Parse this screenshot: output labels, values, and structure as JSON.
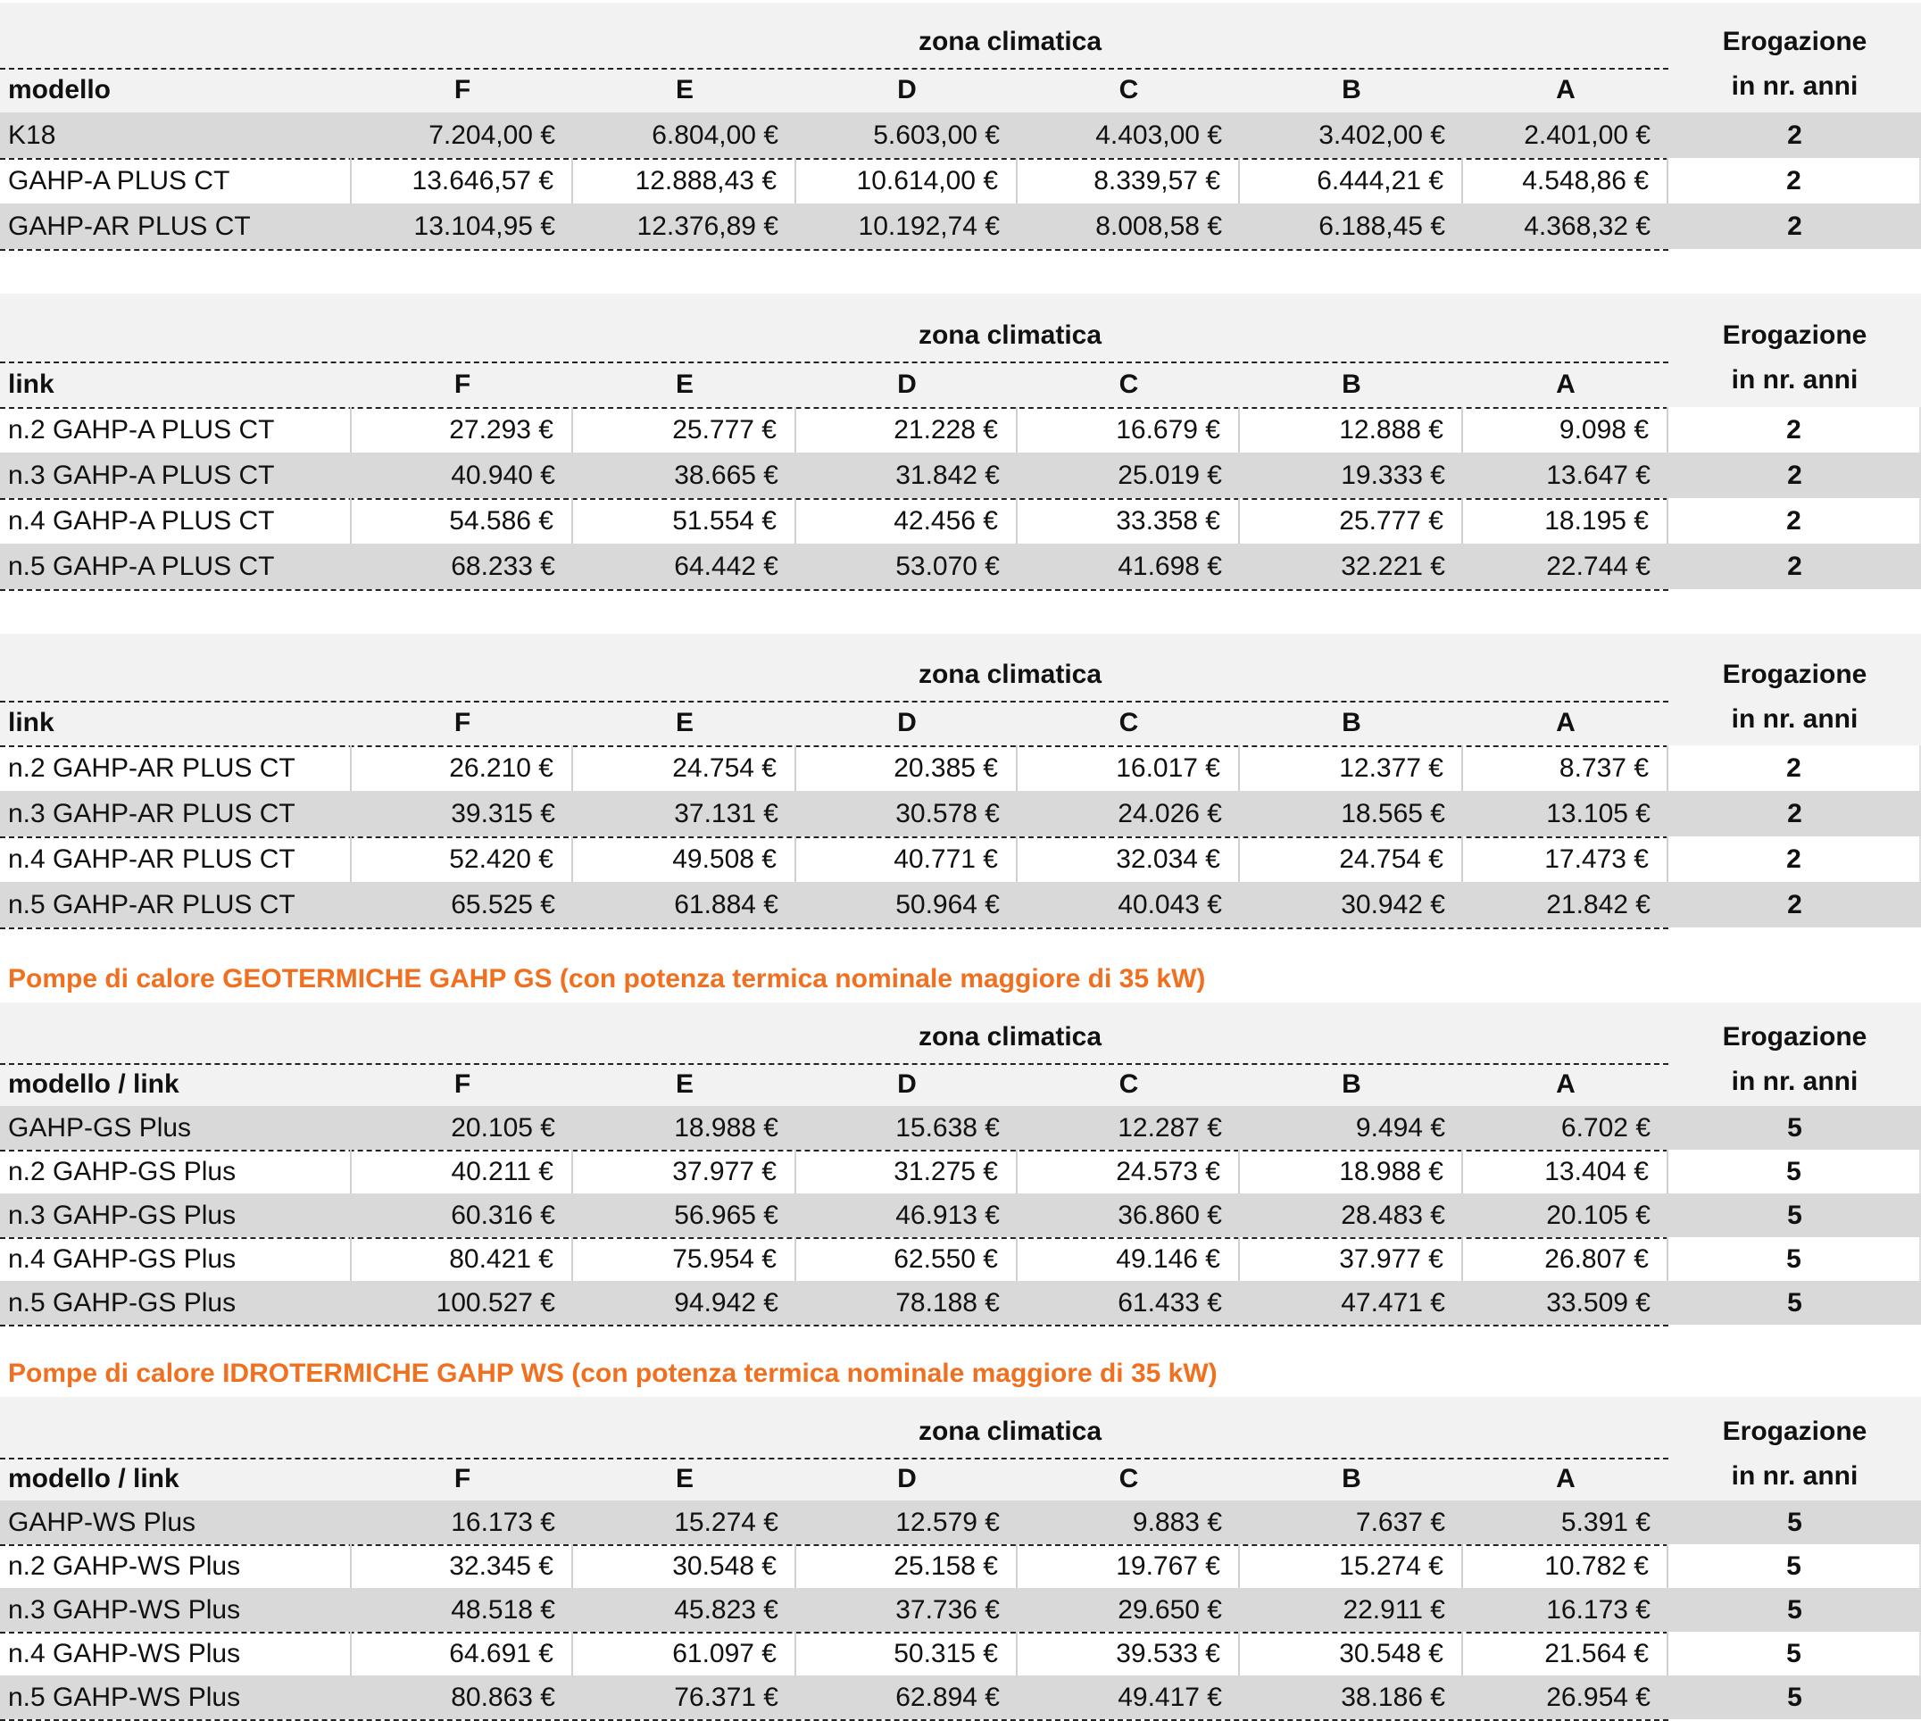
{
  "accent_color": "#f07020",
  "tables": [
    {
      "zona_label": "zona climatica",
      "erogazione_line1": "Erogazione",
      "erogazione_line2": "in nr. anni",
      "first_col_label": "modello",
      "columns": [
        "F",
        "E",
        "D",
        "C",
        "B",
        "A"
      ],
      "rows": [
        {
          "name": "K18",
          "values": [
            "7.204,00 €",
            "6.804,00 €",
            "5.603,00 €",
            "4.403,00 €",
            "3.402,00 €",
            "2.401,00 €"
          ],
          "anni": "2"
        },
        {
          "name": "GAHP-A PLUS CT",
          "values": [
            "13.646,57 €",
            "12.888,43 €",
            "10.614,00 €",
            "8.339,57 €",
            "6.444,21 €",
            "4.548,86 €"
          ],
          "anni": "2"
        },
        {
          "name": "GAHP-AR PLUS CT",
          "values": [
            "13.104,95 €",
            "12.376,89 €",
            "10.192,74 €",
            "8.008,58 €",
            "6.188,45 €",
            "4.368,32 €"
          ],
          "anni": "2"
        }
      ]
    },
    {
      "zona_label": "zona climatica",
      "erogazione_line1": "Erogazione",
      "erogazione_line2": "in nr. anni",
      "first_col_label": "link",
      "columns": [
        "F",
        "E",
        "D",
        "C",
        "B",
        "A"
      ],
      "rows": [
        {
          "name": "n.2 GAHP-A PLUS CT",
          "values": [
            "27.293 €",
            "25.777 €",
            "21.228 €",
            "16.679 €",
            "12.888 €",
            "9.098 €"
          ],
          "anni": "2"
        },
        {
          "name": "n.3 GAHP-A PLUS CT",
          "values": [
            "40.940 €",
            "38.665 €",
            "31.842 €",
            "25.019 €",
            "19.333 €",
            "13.647 €"
          ],
          "anni": "2"
        },
        {
          "name": "n.4 GAHP-A PLUS CT",
          "values": [
            "54.586 €",
            "51.554 €",
            "42.456 €",
            "33.358 €",
            "25.777 €",
            "18.195 €"
          ],
          "anni": "2"
        },
        {
          "name": "n.5 GAHP-A PLUS CT",
          "values": [
            "68.233 €",
            "64.442 €",
            "53.070 €",
            "41.698 €",
            "32.221 €",
            "22.744 €"
          ],
          "anni": "2"
        }
      ]
    },
    {
      "zona_label": "zona climatica",
      "erogazione_line1": "Erogazione",
      "erogazione_line2": "in nr. anni",
      "first_col_label": "link",
      "columns": [
        "F",
        "E",
        "D",
        "C",
        "B",
        "A"
      ],
      "rows": [
        {
          "name": "n.2 GAHP-AR PLUS CT",
          "values": [
            "26.210 €",
            "24.754 €",
            "20.385 €",
            "16.017 €",
            "12.377 €",
            "8.737 €"
          ],
          "anni": "2"
        },
        {
          "name": "n.3 GAHP-AR PLUS CT",
          "values": [
            "39.315 €",
            "37.131 €",
            "30.578 €",
            "24.026 €",
            "18.565 €",
            "13.105 €"
          ],
          "anni": "2"
        },
        {
          "name": "n.4 GAHP-AR PLUS CT",
          "values": [
            "52.420 €",
            "49.508 €",
            "40.771 €",
            "32.034 €",
            "24.754 €",
            "17.473 €"
          ],
          "anni": "2"
        },
        {
          "name": "n.5 GAHP-AR PLUS CT",
          "values": [
            "65.525 €",
            "61.884 €",
            "50.964 €",
            "40.043 €",
            "30.942 €",
            "21.842 €"
          ],
          "anni": "2"
        }
      ]
    },
    {
      "section_title": "Pompe di calore GEOTERMICHE GAHP GS (con potenza termica nominale maggiore di 35 kW)",
      "zona_label": "zona climatica",
      "erogazione_line1": "Erogazione",
      "erogazione_line2": "in nr. anni",
      "first_col_label": "modello / link",
      "columns": [
        "F",
        "E",
        "D",
        "C",
        "B",
        "A"
      ],
      "rows": [
        {
          "name": "GAHP-GS Plus",
          "values": [
            "20.105 €",
            "18.988 €",
            "15.638 €",
            "12.287 €",
            "9.494 €",
            "6.702 €"
          ],
          "anni": "5"
        },
        {
          "name": "n.2 GAHP-GS Plus",
          "values": [
            "40.211 €",
            "37.977 €",
            "31.275 €",
            "24.573 €",
            "18.988 €",
            "13.404 €"
          ],
          "anni": "5"
        },
        {
          "name": "n.3 GAHP-GS Plus",
          "values": [
            "60.316 €",
            "56.965 €",
            "46.913 €",
            "36.860 €",
            "28.483 €",
            "20.105 €"
          ],
          "anni": "5"
        },
        {
          "name": "n.4 GAHP-GS Plus",
          "values": [
            "80.421 €",
            "75.954 €",
            "62.550 €",
            "49.146 €",
            "37.977 €",
            "26.807 €"
          ],
          "anni": "5"
        },
        {
          "name": "n.5 GAHP-GS Plus",
          "values": [
            "100.527 €",
            "94.942 €",
            "78.188 €",
            "61.433 €",
            "47.471 €",
            "33.509 €"
          ],
          "anni": "5"
        }
      ]
    },
    {
      "section_title": "Pompe di calore IDROTERMICHE GAHP WS (con potenza termica nominale maggiore di 35 kW)",
      "zona_label": "zona climatica",
      "erogazione_line1": "Erogazione",
      "erogazione_line2": "in nr. anni",
      "first_col_label": "modello / link",
      "columns": [
        "F",
        "E",
        "D",
        "C",
        "B",
        "A"
      ],
      "rows": [
        {
          "name": "GAHP-WS Plus",
          "values": [
            "16.173 €",
            "15.274 €",
            "12.579 €",
            "9.883 €",
            "7.637 €",
            "5.391 €"
          ],
          "anni": "5"
        },
        {
          "name": "n.2 GAHP-WS Plus",
          "values": [
            "32.345 €",
            "30.548 €",
            "25.158 €",
            "19.767 €",
            "15.274 €",
            "10.782 €"
          ],
          "anni": "5"
        },
        {
          "name": "n.3 GAHP-WS Plus",
          "values": [
            "48.518 €",
            "45.823 €",
            "37.736 €",
            "29.650 €",
            "22.911 €",
            "16.173 €"
          ],
          "anni": "5"
        },
        {
          "name": "n.4 GAHP-WS Plus",
          "values": [
            "64.691 €",
            "61.097 €",
            "50.315 €",
            "39.533 €",
            "30.548 €",
            "21.564 €"
          ],
          "anni": "5"
        },
        {
          "name": "n.5 GAHP-WS Plus",
          "values": [
            "80.863 €",
            "76.371 €",
            "62.894 €",
            "49.417 €",
            "38.186 €",
            "26.954 €"
          ],
          "anni": "5"
        }
      ]
    }
  ]
}
